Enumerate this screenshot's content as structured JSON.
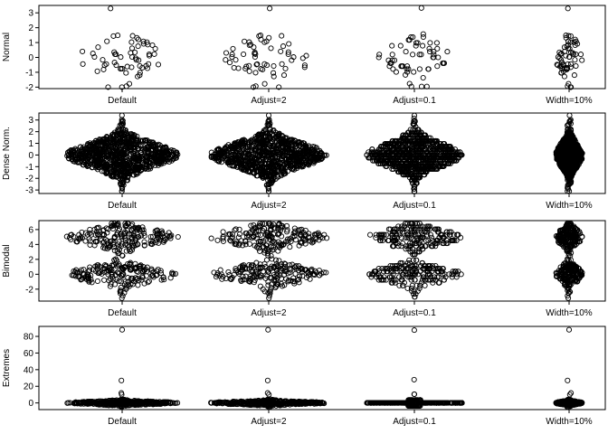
{
  "chart_data": [
    {
      "type": "scatter",
      "style": "beeswarm",
      "ylabel": "Normal",
      "ylim": [
        -2.1,
        3.5
      ],
      "yticks": [
        -2,
        -1,
        0,
        1,
        2,
        3
      ],
      "categories": [
        "Default",
        "Adjust=2",
        "Adjust=0.1",
        "Width=10%"
      ],
      "n_points": 60,
      "distribution": "normal",
      "summary": {
        "center": 0,
        "sd": 1,
        "min": -2,
        "max": 3.3
      }
    },
    {
      "type": "scatter",
      "style": "beeswarm",
      "ylabel": "Dense Norm.",
      "ylim": [
        -3.3,
        3.6
      ],
      "yticks": [
        -3,
        -2,
        -1,
        0,
        1,
        2,
        3
      ],
      "categories": [
        "Default",
        "Adjust=2",
        "Adjust=0.1",
        "Width=10%"
      ],
      "n_points": 1000,
      "distribution": "normal",
      "summary": {
        "center": 0,
        "sd": 1,
        "min": -3.1,
        "max": 3.4
      }
    },
    {
      "type": "scatter",
      "style": "beeswarm",
      "ylabel": "Bimodal",
      "ylim": [
        -3.6,
        7.2
      ],
      "yticks": [
        -2,
        0,
        2,
        4,
        6
      ],
      "categories": [
        "Default",
        "Adjust=2",
        "Adjust=0.1",
        "Width=10%"
      ],
      "n_points": 400,
      "distribution": "bimodal",
      "summary": {
        "modes": [
          0,
          5
        ],
        "sd": 1,
        "min": -3.2,
        "max": 6.8
      }
    },
    {
      "type": "scatter",
      "style": "beeswarm",
      "ylabel": "Extremes",
      "ylim": [
        -8,
        92
      ],
      "yticks": [
        0,
        20,
        40,
        60,
        80
      ],
      "categories": [
        "Default",
        "Adjust=2",
        "Adjust=0.1",
        "Width=10%"
      ],
      "n_points": 400,
      "distribution": "normal with outliers",
      "summary": {
        "center": 0,
        "outliers": [
          27,
          88
        ],
        "min": -5,
        "max": 88
      }
    }
  ]
}
